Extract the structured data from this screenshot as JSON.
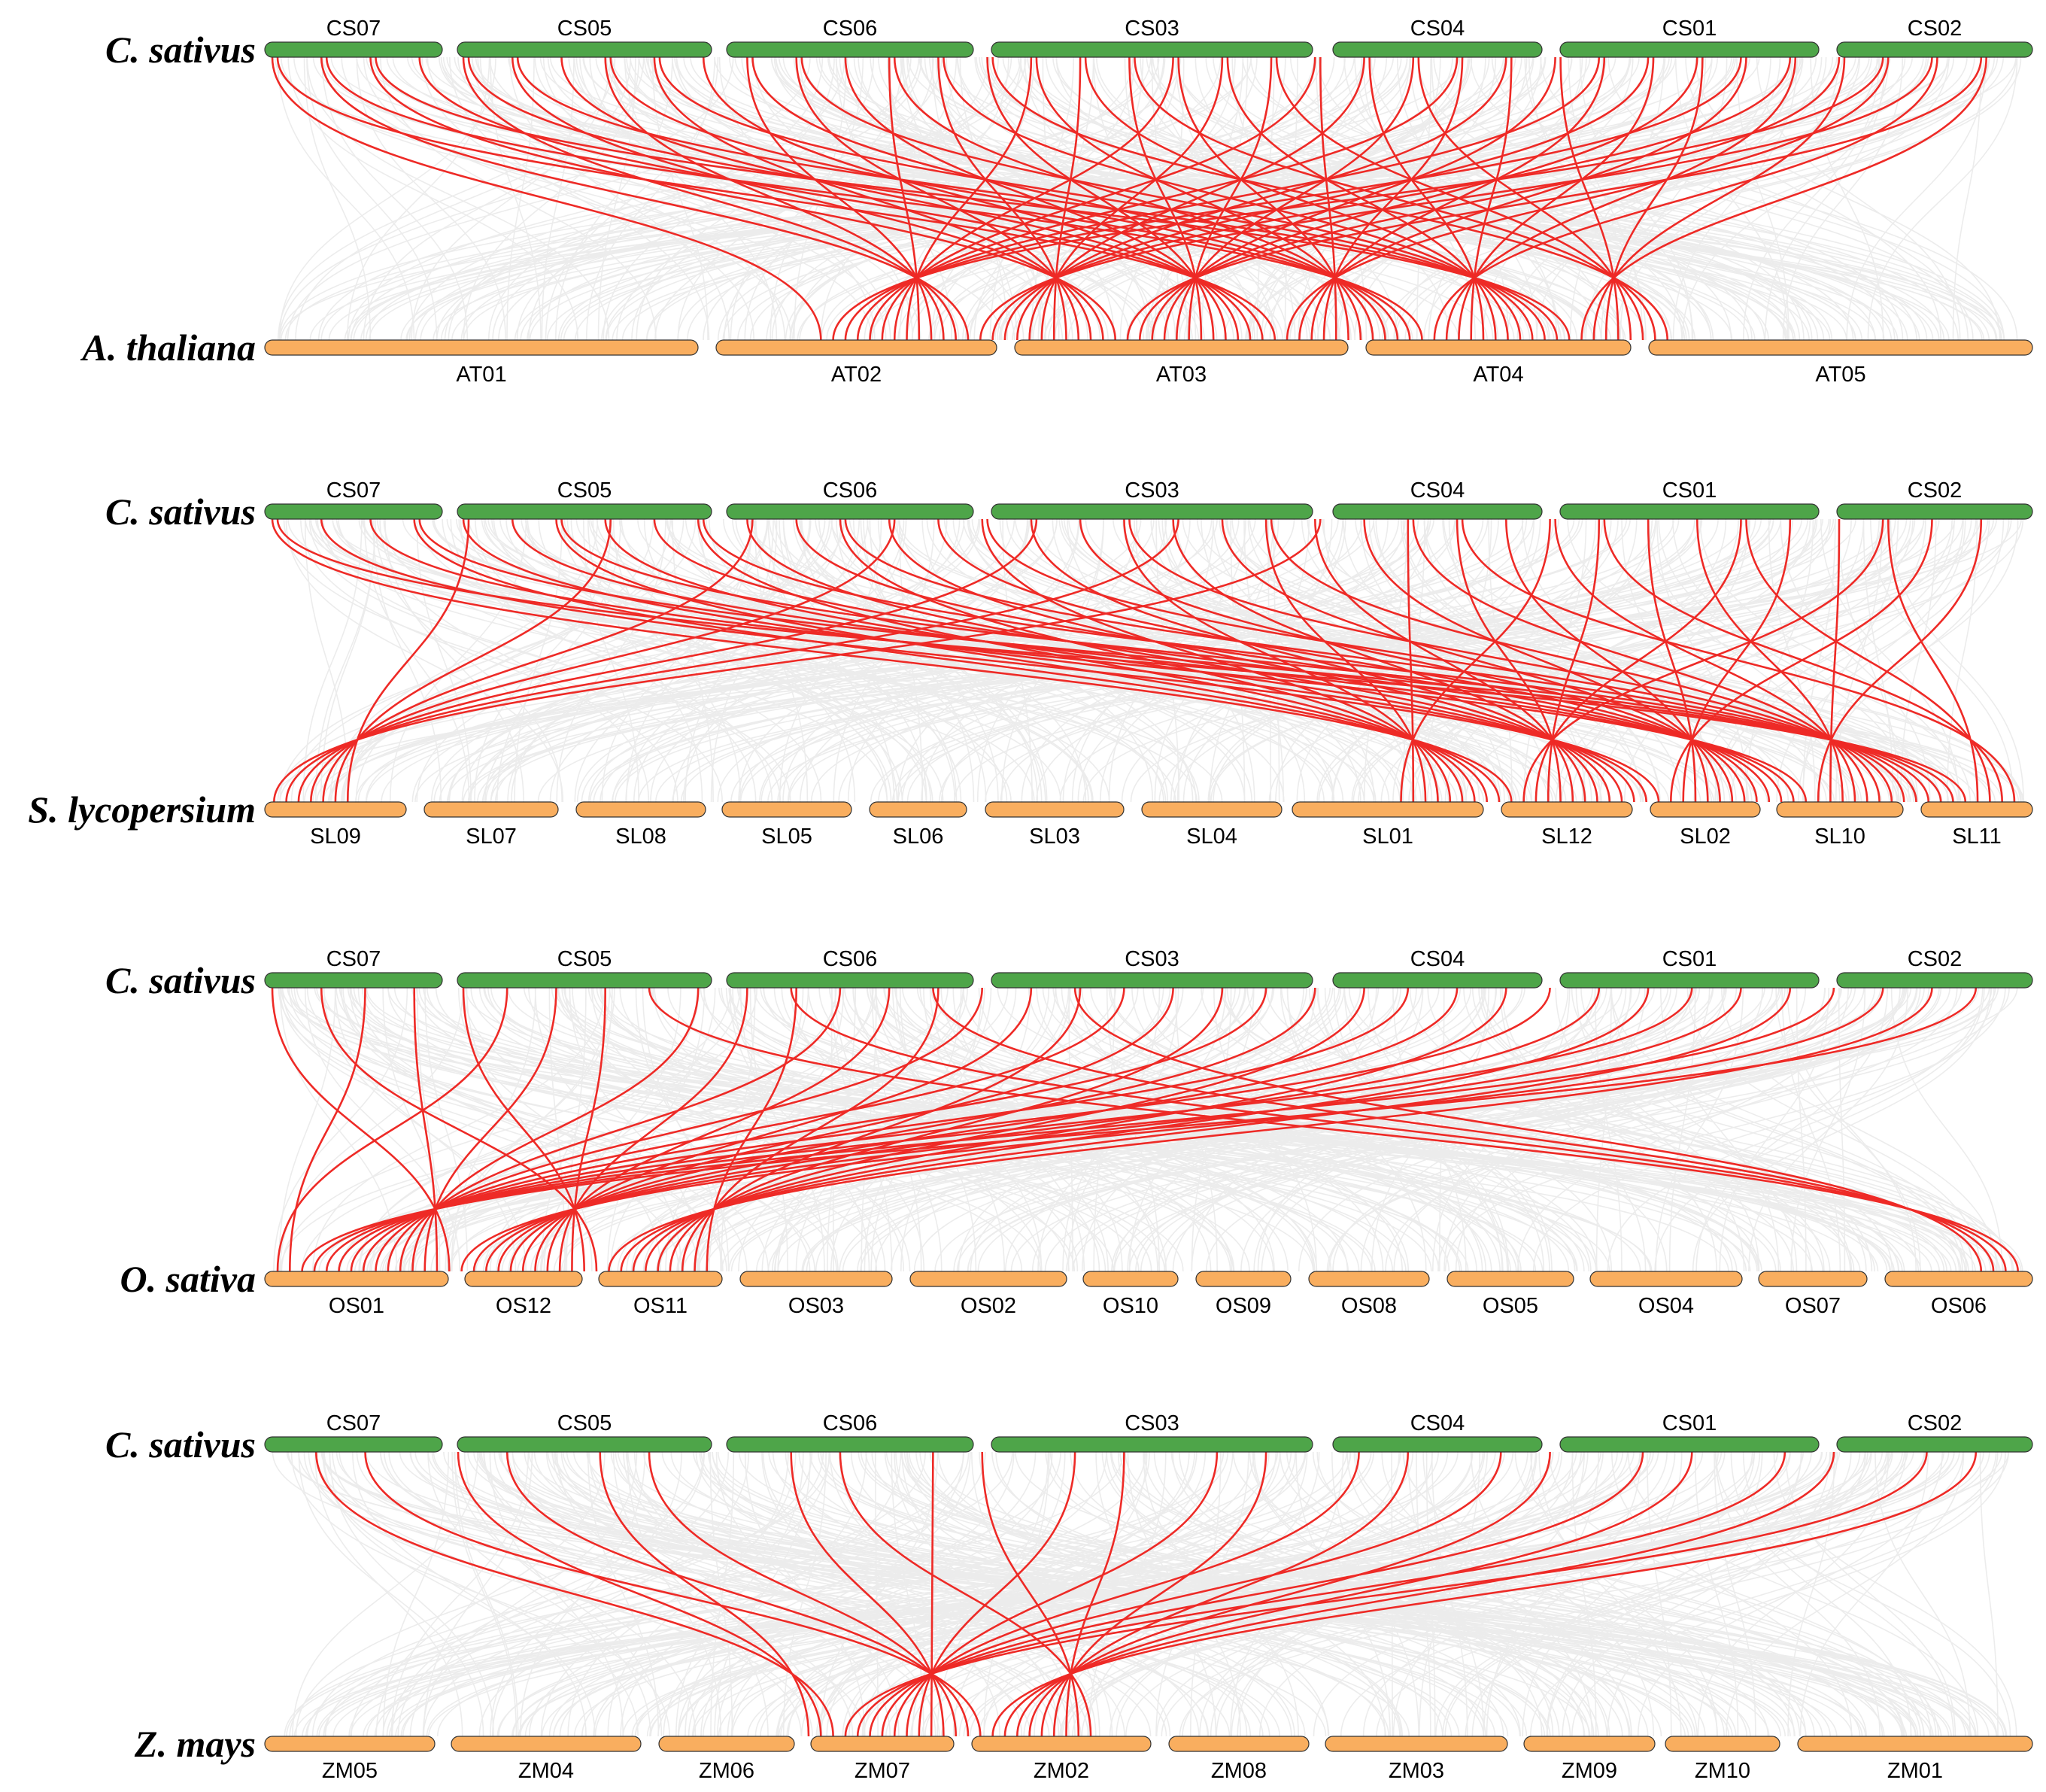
{
  "colors": {
    "reference_bar": "#4ea549",
    "comparison_bar": "#f9ae5f",
    "background_links": "#e6e6e6",
    "syntenic_links": "#ee2a26"
  },
  "panels": [
    {
      "reference_species": "C. sativus",
      "comparison_species": "A. thaliana",
      "reference_chromosomes": [
        "CS07",
        "CS05",
        "CS06",
        "CS03",
        "CS04",
        "CS01",
        "CS02"
      ],
      "comparison_chromosomes": [
        "AT01",
        "AT02",
        "AT03",
        "AT04",
        "AT05"
      ]
    },
    {
      "reference_species": "C. sativus",
      "comparison_species": "S. lycopersium",
      "reference_chromosomes": [
        "CS07",
        "CS05",
        "CS06",
        "CS03",
        "CS04",
        "CS01",
        "CS02"
      ],
      "comparison_chromosomes": [
        "SL09",
        "SL07",
        "SL08",
        "SL05",
        "SL06",
        "SL03",
        "SL04",
        "SL01",
        "SL12",
        "SL02",
        "SL10",
        "SL11"
      ]
    },
    {
      "reference_species": "C. sativus",
      "comparison_species": "O. sativa",
      "reference_chromosomes": [
        "CS07",
        "CS05",
        "CS06",
        "CS03",
        "CS04",
        "CS01",
        "CS02"
      ],
      "comparison_chromosomes": [
        "OS01",
        "OS12",
        "OS11",
        "OS03",
        "OS02",
        "OS10",
        "OS09",
        "OS08",
        "OS05",
        "OS04",
        "OS07",
        "OS06"
      ]
    },
    {
      "reference_species": "C. sativus",
      "comparison_species": "Z. mays",
      "reference_chromosomes": [
        "CS07",
        "CS05",
        "CS06",
        "CS03",
        "CS04",
        "CS01",
        "CS02"
      ],
      "comparison_chromosomes": [
        "ZM05",
        "ZM04",
        "ZM06",
        "ZM07",
        "ZM02",
        "ZM08",
        "ZM03",
        "ZM09",
        "ZM10",
        "ZM01"
      ]
    }
  ]
}
